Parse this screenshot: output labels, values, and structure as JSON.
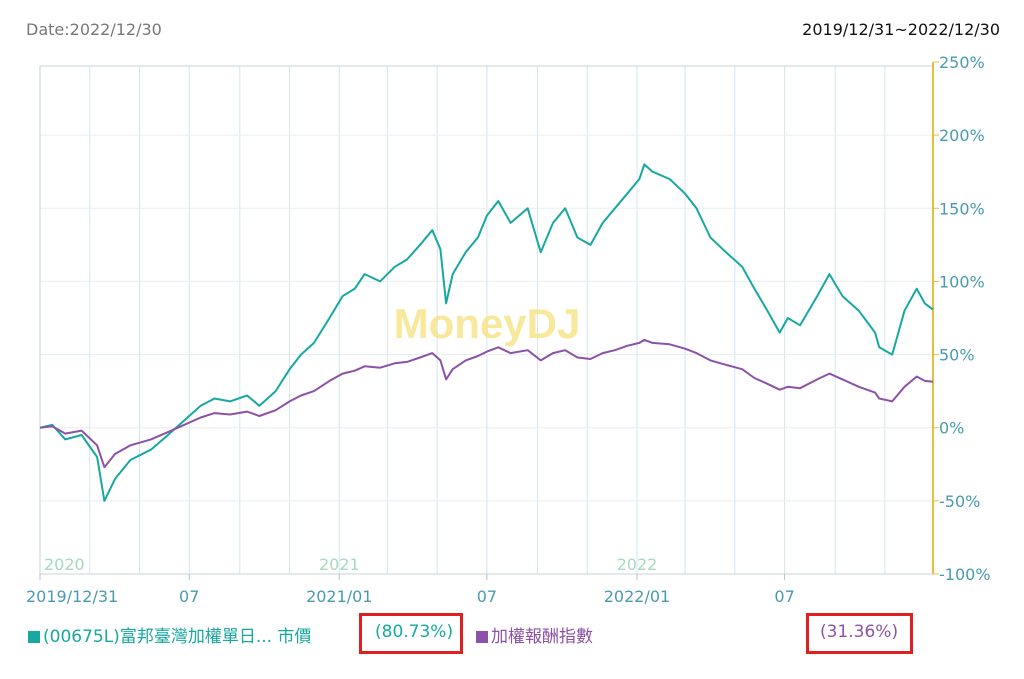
{
  "header": {
    "date_label": "Date:2022/12/30",
    "range_label": "2019/12/31~2022/12/30"
  },
  "watermark": "MoneyDJ",
  "colors": {
    "series1": "#17a8a0",
    "series2": "#8c52a8",
    "axis_right": "#e8c040",
    "grid": "#d3e6f0",
    "tick_text": "#4a9ab0"
  },
  "legend": {
    "series1_label": "(00675L)富邦臺灣加權單日... 市價",
    "series1_value": "(80.73%)",
    "series2_label": "加權報酬指數",
    "series2_value": "(31.36%)"
  },
  "chart_data": {
    "type": "line",
    "title": "",
    "xlabel": "",
    "ylabel": "",
    "x_range": [
      "2019-12-31",
      "2022-12-30"
    ],
    "ylim": [
      -100,
      250
    ],
    "y_unit": "%",
    "y_ticks": [
      "250%",
      "200%",
      "150%",
      "100%",
      "50%",
      "0%",
      "-50%",
      "-100%"
    ],
    "year_labels": [
      {
        "date": "2020-01-01",
        "label": "2020"
      },
      {
        "date": "2021-01-01",
        "label": "2021"
      },
      {
        "date": "2022-01-01",
        "label": "2022"
      }
    ],
    "x_tick_labels": [
      {
        "date": "2019-12-31",
        "label": "2019/12/31"
      },
      {
        "date": "2020-07-01",
        "label": "07"
      },
      {
        "date": "2021-01-01",
        "label": "2021/01"
      },
      {
        "date": "2021-07-01",
        "label": "07"
      },
      {
        "date": "2022-01-01",
        "label": "2022/01"
      },
      {
        "date": "2022-07-01",
        "label": "07"
      }
    ],
    "gridline_dates": [
      "2020-03-01",
      "2020-05-01",
      "2020-07-01",
      "2020-09-01",
      "2020-11-01",
      "2021-01-01",
      "2021-03-01",
      "2021-05-01",
      "2021-07-01",
      "2021-09-01",
      "2021-11-01",
      "2022-01-01",
      "2022-03-01",
      "2022-05-01",
      "2022-07-01",
      "2022-09-01",
      "2022-11-01"
    ],
    "series": [
      {
        "name": "(00675L)富邦臺灣加權單日... 市價",
        "x": [
          "2019-12-31",
          "2020-01-15",
          "2020-01-31",
          "2020-02-20",
          "2020-03-10",
          "2020-03-19",
          "2020-04-01",
          "2020-04-20",
          "2020-05-15",
          "2020-06-05",
          "2020-06-25",
          "2020-07-15",
          "2020-08-01",
          "2020-08-20",
          "2020-09-10",
          "2020-09-25",
          "2020-10-15",
          "2020-11-01",
          "2020-11-15",
          "2020-12-01",
          "2020-12-20",
          "2021-01-05",
          "2021-01-20",
          "2021-02-01",
          "2021-02-20",
          "2021-03-10",
          "2021-03-25",
          "2021-04-10",
          "2021-04-25",
          "2021-05-05",
          "2021-05-12",
          "2021-05-20",
          "2021-06-05",
          "2021-06-20",
          "2021-07-01",
          "2021-07-15",
          "2021-07-30",
          "2021-08-20",
          "2021-09-05",
          "2021-09-20",
          "2021-10-05",
          "2021-10-20",
          "2021-11-05",
          "2021-11-20",
          "2021-12-05",
          "2021-12-20",
          "2022-01-04",
          "2022-01-10",
          "2022-01-20",
          "2022-02-10",
          "2022-03-01",
          "2022-03-15",
          "2022-04-01",
          "2022-04-20",
          "2022-05-10",
          "2022-05-25",
          "2022-06-10",
          "2022-06-25",
          "2022-07-05",
          "2022-07-20",
          "2022-08-10",
          "2022-08-25",
          "2022-09-10",
          "2022-09-30",
          "2022-10-20",
          "2022-10-25",
          "2022-11-10",
          "2022-11-25",
          "2022-12-10",
          "2022-12-20",
          "2022-12-30"
        ],
        "values": [
          0,
          2,
          -8,
          -5,
          -20,
          -50,
          -35,
          -22,
          -15,
          -5,
          5,
          15,
          20,
          18,
          22,
          15,
          25,
          40,
          50,
          58,
          75,
          90,
          95,
          105,
          100,
          110,
          115,
          125,
          135,
          122,
          85,
          105,
          120,
          130,
          145,
          155,
          140,
          150,
          120,
          140,
          150,
          130,
          125,
          140,
          150,
          160,
          170,
          180,
          175,
          170,
          160,
          150,
          130,
          120,
          110,
          95,
          80,
          65,
          75,
          70,
          90,
          105,
          90,
          80,
          65,
          55,
          50,
          80,
          95,
          85,
          80.73
        ]
      },
      {
        "name": "加權報酬指數",
        "x": [
          "2019-12-31",
          "2020-01-15",
          "2020-01-31",
          "2020-02-20",
          "2020-03-10",
          "2020-03-19",
          "2020-04-01",
          "2020-04-20",
          "2020-05-15",
          "2020-06-05",
          "2020-06-25",
          "2020-07-15",
          "2020-08-01",
          "2020-08-20",
          "2020-09-10",
          "2020-09-25",
          "2020-10-15",
          "2020-11-01",
          "2020-11-15",
          "2020-12-01",
          "2020-12-20",
          "2021-01-05",
          "2021-01-20",
          "2021-02-01",
          "2021-02-20",
          "2021-03-10",
          "2021-03-25",
          "2021-04-10",
          "2021-04-25",
          "2021-05-05",
          "2021-05-12",
          "2021-05-20",
          "2021-06-05",
          "2021-06-20",
          "2021-07-01",
          "2021-07-15",
          "2021-07-30",
          "2021-08-20",
          "2021-09-05",
          "2021-09-20",
          "2021-10-05",
          "2021-10-20",
          "2021-11-05",
          "2021-11-20",
          "2021-12-05",
          "2021-12-20",
          "2022-01-04",
          "2022-01-10",
          "2022-01-20",
          "2022-02-10",
          "2022-03-01",
          "2022-03-15",
          "2022-04-01",
          "2022-04-20",
          "2022-05-10",
          "2022-05-25",
          "2022-06-10",
          "2022-06-25",
          "2022-07-05",
          "2022-07-20",
          "2022-08-10",
          "2022-08-25",
          "2022-09-10",
          "2022-09-30",
          "2022-10-20",
          "2022-10-25",
          "2022-11-10",
          "2022-11-25",
          "2022-12-10",
          "2022-12-20",
          "2022-12-30"
        ],
        "values": [
          0,
          1,
          -4,
          -2,
          -12,
          -27,
          -18,
          -12,
          -8,
          -3,
          2,
          7,
          10,
          9,
          11,
          8,
          12,
          18,
          22,
          25,
          32,
          37,
          39,
          42,
          41,
          44,
          45,
          48,
          51,
          46,
          33,
          40,
          46,
          49,
          52,
          55,
          51,
          53,
          46,
          51,
          53,
          48,
          47,
          51,
          53,
          56,
          58,
          60,
          58,
          57,
          54,
          51,
          46,
          43,
          40,
          34,
          30,
          26,
          28,
          27,
          33,
          37,
          33,
          28,
          24,
          20,
          18,
          28,
          35,
          32,
          31.36
        ]
      }
    ]
  }
}
